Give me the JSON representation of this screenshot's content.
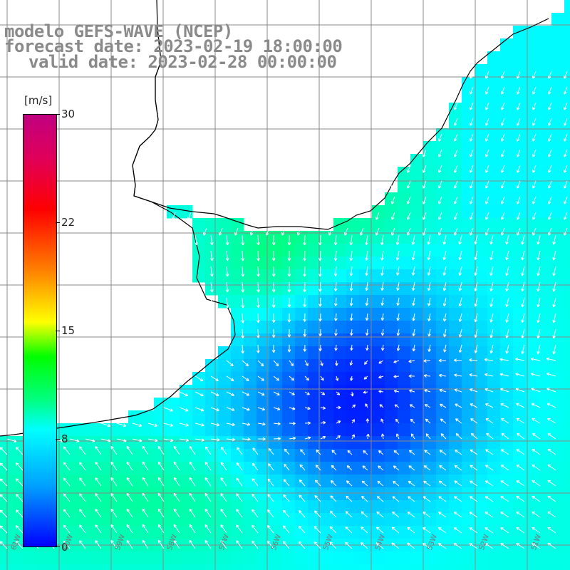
{
  "title": {
    "line1": "modelo GEFS-WAVE (NCEP)",
    "line2": "forecast date: 2023-02-19 18:00:00",
    "line3": "valid date: 2023-02-28 00:00:00"
  },
  "colorbar": {
    "unit": "[m/s]",
    "ticks": [
      "30",
      "22",
      "15",
      "8",
      "0"
    ],
    "colors": [
      "#0000ff",
      "#00a0ff",
      "#00ffff",
      "#00ff80",
      "#00ff00",
      "#ffff00",
      "#ff8000",
      "#ff0000",
      "#c00080"
    ]
  },
  "map": {
    "land_color": "#ffffff",
    "grid_color": "#888888",
    "coastline_color": "#000000",
    "arrow_color": "#ffffff",
    "lon_labels": [
      "61W",
      "60W",
      "59W",
      "58W",
      "57W",
      "56W",
      "55W",
      "54W",
      "53W",
      "52W",
      "51W"
    ]
  }
}
